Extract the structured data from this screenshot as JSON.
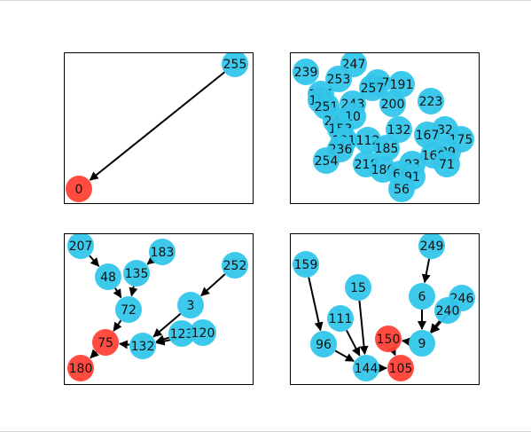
{
  "colors": {
    "root": "#ff4136",
    "node": "#33c6ea",
    "edge": "#000000",
    "frame": "#000000",
    "background": "#ffffff"
  },
  "panels": [
    {
      "id": "top-left",
      "root_ids": [
        "0"
      ],
      "nodes": [
        {
          "id": "255",
          "label": "255"
        },
        {
          "id": "0",
          "label": "0"
        }
      ],
      "edges": [
        [
          "255",
          "0"
        ]
      ]
    },
    {
      "id": "top-right",
      "root_ids": [],
      "nodes": [
        {
          "id": "239",
          "label": "239"
        },
        {
          "id": "247",
          "label": "247"
        },
        {
          "id": "253",
          "label": "253"
        },
        {
          "id": "127",
          "label": "127"
        },
        {
          "id": "191",
          "label": "191"
        },
        {
          "id": "257",
          "label": "257"
        },
        {
          "id": "215",
          "label": "215"
        },
        {
          "id": "152",
          "label": "152"
        },
        {
          "id": "251",
          "label": "251"
        },
        {
          "id": "243",
          "label": "243"
        },
        {
          "id": "200",
          "label": "200"
        },
        {
          "id": "223",
          "label": "223"
        },
        {
          "id": "241",
          "label": "241"
        },
        {
          "id": "10",
          "label": "10"
        },
        {
          "id": "153",
          "label": "153"
        },
        {
          "id": "132",
          "label": "132"
        },
        {
          "id": "32",
          "label": "32"
        },
        {
          "id": "175",
          "label": "175"
        },
        {
          "id": "121",
          "label": "121"
        },
        {
          "id": "112",
          "label": "112"
        },
        {
          "id": "167",
          "label": "167"
        },
        {
          "id": "89",
          "label": "89"
        },
        {
          "id": "236",
          "label": "236"
        },
        {
          "id": "185",
          "label": "185"
        },
        {
          "id": "168",
          "label": "168"
        },
        {
          "id": "254",
          "label": "254"
        },
        {
          "id": "218",
          "label": "218"
        },
        {
          "id": "180",
          "label": "180"
        },
        {
          "id": "93",
          "label": "93"
        },
        {
          "id": "71",
          "label": "71"
        },
        {
          "id": "66",
          "label": "66"
        },
        {
          "id": "91",
          "label": "91"
        },
        {
          "id": "56",
          "label": "56"
        }
      ],
      "edges": []
    },
    {
      "id": "bottom-left",
      "root_ids": [
        "75",
        "180"
      ],
      "nodes": [
        {
          "id": "207",
          "label": "207"
        },
        {
          "id": "183",
          "label": "183"
        },
        {
          "id": "48",
          "label": "48"
        },
        {
          "id": "135",
          "label": "135"
        },
        {
          "id": "252",
          "label": "252"
        },
        {
          "id": "72",
          "label": "72"
        },
        {
          "id": "3",
          "label": "3"
        },
        {
          "id": "123",
          "label": "123"
        },
        {
          "id": "120",
          "label": "120"
        },
        {
          "id": "75",
          "label": "75"
        },
        {
          "id": "132",
          "label": "132"
        },
        {
          "id": "180",
          "label": "180"
        }
      ],
      "edges": [
        [
          "207",
          "48"
        ],
        [
          "48",
          "72"
        ],
        [
          "135",
          "72"
        ],
        [
          "183",
          "135"
        ],
        [
          "72",
          "75"
        ],
        [
          "252",
          "3"
        ],
        [
          "3",
          "132"
        ],
        [
          "123",
          "132"
        ],
        [
          "120",
          "132"
        ],
        [
          "132",
          "75"
        ],
        [
          "75",
          "180"
        ]
      ]
    },
    {
      "id": "bottom-right",
      "root_ids": [
        "150",
        "105"
      ],
      "nodes": [
        {
          "id": "249",
          "label": "249"
        },
        {
          "id": "159",
          "label": "159"
        },
        {
          "id": "15",
          "label": "15"
        },
        {
          "id": "6",
          "label": "6"
        },
        {
          "id": "246",
          "label": "246"
        },
        {
          "id": "240",
          "label": "240"
        },
        {
          "id": "111",
          "label": "111"
        },
        {
          "id": "96",
          "label": "96"
        },
        {
          "id": "150",
          "label": "150"
        },
        {
          "id": "9",
          "label": "9"
        },
        {
          "id": "144",
          "label": "144"
        },
        {
          "id": "105",
          "label": "105"
        }
      ],
      "edges": [
        [
          "249",
          "6"
        ],
        [
          "6",
          "9"
        ],
        [
          "246",
          "9"
        ],
        [
          "240",
          "9"
        ],
        [
          "9",
          "150"
        ],
        [
          "159",
          "96"
        ],
        [
          "96",
          "144"
        ],
        [
          "111",
          "144"
        ],
        [
          "15",
          "144"
        ],
        [
          "144",
          "105"
        ],
        [
          "150",
          "105"
        ]
      ]
    }
  ]
}
